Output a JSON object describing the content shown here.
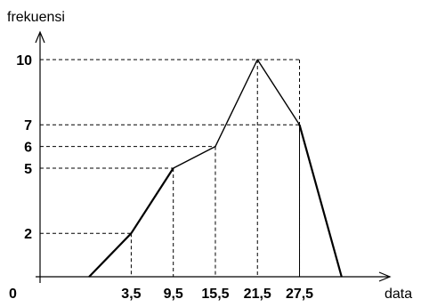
{
  "chart_data": {
    "type": "line",
    "title": "",
    "xlabel": "data",
    "ylabel": "frekuensi",
    "origin_label": "0",
    "x_ticks": [
      "3,5",
      "9,5",
      "15,5",
      "21,5",
      "27,5"
    ],
    "y_ticks": [
      2,
      5,
      6,
      7,
      10
    ],
    "x": [
      -2.5,
      3.5,
      9.5,
      15.5,
      21.5,
      27.5,
      33.5
    ],
    "series": [
      {
        "values": [
          0,
          2,
          5,
          6,
          10,
          7,
          0
        ]
      }
    ],
    "xlim": [
      -9.5,
      40
    ],
    "ylim": [
      0,
      10
    ],
    "grid": false,
    "dashed_guides": [
      {
        "x": 3.5,
        "y": 2
      },
      {
        "x": 9.5,
        "y": 5
      },
      {
        "x": 15.5,
        "y": 6
      },
      {
        "x": 21.5,
        "y": 10
      },
      {
        "x": 27.5,
        "y": 7
      },
      {
        "x": 27.5,
        "y": 10
      }
    ]
  }
}
